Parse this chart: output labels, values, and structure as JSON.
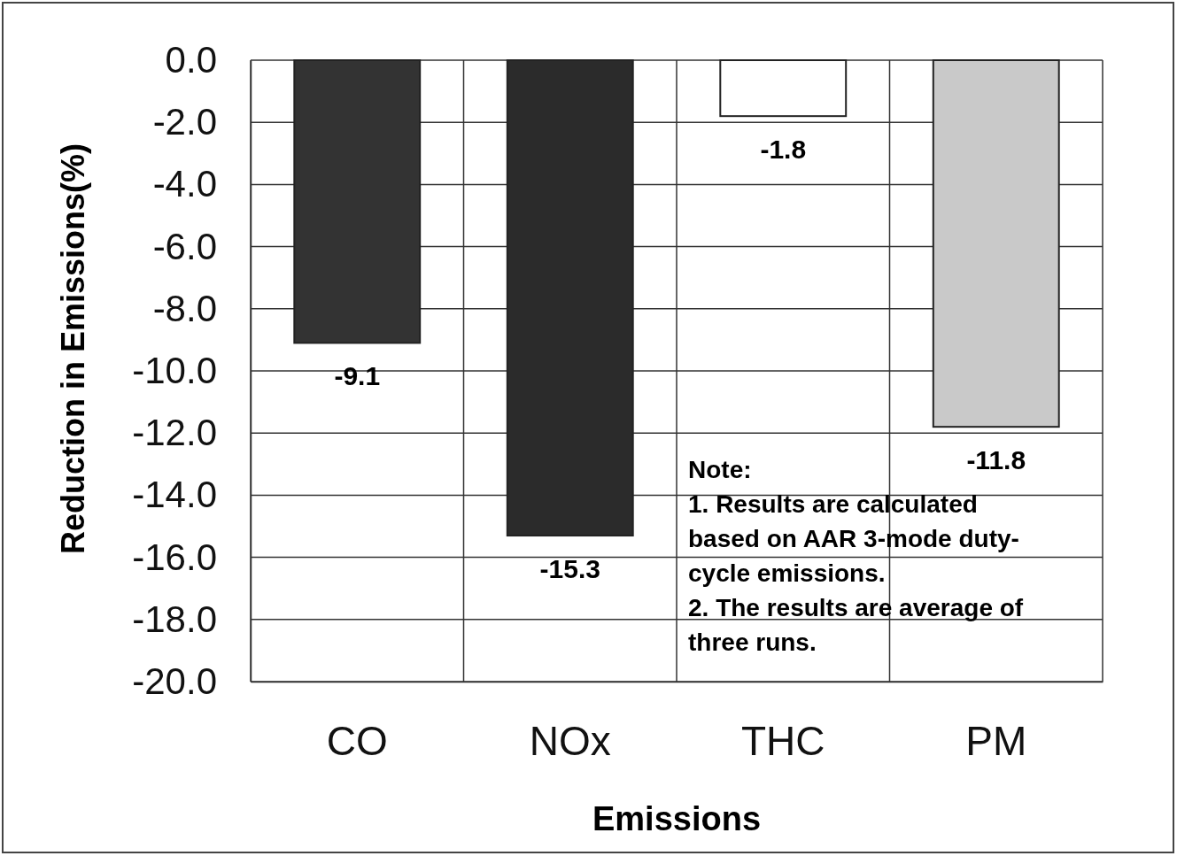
{
  "chart_data": {
    "type": "bar",
    "xlabel": "Emissions",
    "ylabel": "Reduction in Emissions(%)",
    "categories": [
      "CO",
      "NOx",
      "THC",
      "PM"
    ],
    "values": [
      -9.1,
      -15.3,
      -1.8,
      -11.8
    ],
    "colors": [
      "#333333",
      "#2b2b2b",
      "#ffffff",
      "#c9c9c9"
    ],
    "ylim": [
      -20,
      0
    ],
    "yticks": [
      {
        "value": 0,
        "label": "0.0"
      },
      {
        "value": -2,
        "label": "-2.0"
      },
      {
        "value": -4,
        "label": "-4.0"
      },
      {
        "value": -6,
        "label": "-6.0"
      },
      {
        "value": -8,
        "label": "-8.0"
      },
      {
        "value": -10,
        "label": "-10.0"
      },
      {
        "value": -12,
        "label": "-12.0"
      },
      {
        "value": -14,
        "label": "-14.0"
      },
      {
        "value": -16,
        "label": "-16.0"
      },
      {
        "value": -18,
        "label": "-18.0"
      },
      {
        "value": -20,
        "label": "-20.0"
      }
    ],
    "grid": true,
    "data_labels": true,
    "annotations": [
      "Note:\n1. Results are calculated\nbased on AAR 3-mode duty-\ncycle emissions.\n2. The results are average of\nthree runs."
    ]
  }
}
